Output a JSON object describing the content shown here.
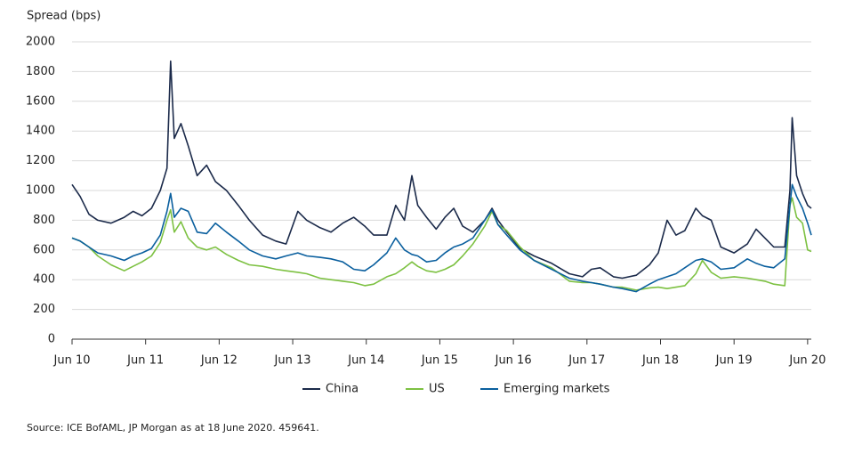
{
  "chart_data": {
    "type": "line",
    "y_label": "Spread (bps)",
    "source": "Source: ICE BofAML, JP Morgan as at 18 June 2020. 459641.",
    "x": [
      2010.5,
      2010.61,
      2010.73,
      2010.85,
      2011.03,
      2011.21,
      2011.33,
      2011.45,
      2011.58,
      2011.7,
      2011.79,
      2011.84,
      2011.89,
      2011.98,
      2012.08,
      2012.2,
      2012.33,
      2012.45,
      2012.6,
      2012.76,
      2012.91,
      2013.09,
      2013.27,
      2013.41,
      2013.57,
      2013.69,
      2013.87,
      2014.02,
      2014.18,
      2014.33,
      2014.48,
      2014.6,
      2014.78,
      2014.9,
      2015.02,
      2015.12,
      2015.2,
      2015.32,
      2015.45,
      2015.57,
      2015.69,
      2015.81,
      2015.95,
      2016.11,
      2016.21,
      2016.29,
      2016.41,
      2016.59,
      2016.78,
      2017.02,
      2017.26,
      2017.44,
      2017.56,
      2017.68,
      2017.86,
      2017.98,
      2018.17,
      2018.35,
      2018.47,
      2018.59,
      2018.71,
      2018.83,
      2018.98,
      2019.07,
      2019.19,
      2019.32,
      2019.5,
      2019.68,
      2019.8,
      2019.92,
      2020.04,
      2020.19,
      2020.26,
      2020.29,
      2020.35,
      2020.43,
      2020.5,
      2020.55
    ],
    "series": [
      {
        "name": "China",
        "color": "#1b2a4a",
        "values": [
          1040,
          960,
          840,
          800,
          780,
          820,
          860,
          830,
          880,
          1000,
          1150,
          1870,
          1350,
          1450,
          1300,
          1100,
          1170,
          1060,
          1000,
          900,
          800,
          700,
          660,
          640,
          860,
          800,
          750,
          720,
          780,
          820,
          760,
          700,
          700,
          900,
          800,
          1100,
          900,
          820,
          740,
          820,
          880,
          760,
          720,
          800,
          880,
          800,
          720,
          610,
          560,
          510,
          440,
          420,
          470,
          480,
          420,
          410,
          430,
          500,
          580,
          800,
          700,
          730,
          880,
          830,
          800,
          620,
          580,
          640,
          740,
          680,
          620,
          620,
          1000,
          1490,
          1100,
          980,
          900,
          880
        ]
      },
      {
        "name": "US",
        "color": "#7dc142",
        "values": [
          680,
          660,
          620,
          560,
          500,
          460,
          490,
          520,
          560,
          650,
          800,
          870,
          720,
          790,
          680,
          620,
          600,
          620,
          570,
          530,
          500,
          490,
          470,
          460,
          450,
          440,
          410,
          400,
          390,
          380,
          360,
          370,
          420,
          440,
          480,
          520,
          490,
          460,
          450,
          470,
          500,
          560,
          640,
          760,
          860,
          770,
          730,
          620,
          530,
          480,
          390,
          380,
          380,
          370,
          350,
          350,
          330,
          345,
          350,
          340,
          350,
          360,
          440,
          530,
          450,
          410,
          420,
          410,
          400,
          390,
          370,
          360,
          900,
          950,
          820,
          780,
          600,
          590
        ]
      },
      {
        "name": "Emerging markets",
        "color": "#0a5f9e",
        "values": [
          680,
          660,
          620,
          580,
          560,
          530,
          560,
          580,
          610,
          700,
          860,
          980,
          820,
          880,
          860,
          720,
          710,
          780,
          720,
          660,
          600,
          560,
          540,
          560,
          580,
          560,
          550,
          540,
          520,
          470,
          460,
          500,
          580,
          680,
          600,
          570,
          560,
          520,
          530,
          580,
          620,
          640,
          680,
          800,
          870,
          770,
          700,
          600,
          530,
          470,
          410,
          390,
          380,
          370,
          350,
          340,
          320,
          370,
          400,
          420,
          440,
          480,
          530,
          540,
          520,
          470,
          480,
          540,
          510,
          490,
          480,
          540,
          900,
          1040,
          960,
          880,
          780,
          700
        ]
      }
    ],
    "xlim": [
      2010.5,
      2020.55
    ],
    "xticks": [
      {
        "value": 2010.5,
        "label": "Jun 10"
      },
      {
        "value": 2011.5,
        "label": "Jun 11"
      },
      {
        "value": 2012.5,
        "label": "Jun 12"
      },
      {
        "value": 2013.5,
        "label": "Jun 13"
      },
      {
        "value": 2014.5,
        "label": "Jun 14"
      },
      {
        "value": 2015.5,
        "label": "Jun 15"
      },
      {
        "value": 2016.5,
        "label": "Jun 16"
      },
      {
        "value": 2017.5,
        "label": "Jun 17"
      },
      {
        "value": 2018.5,
        "label": "Jun 18"
      },
      {
        "value": 2019.5,
        "label": "Jun 19"
      },
      {
        "value": 2020.5,
        "label": "Jun 20"
      }
    ],
    "ylim": [
      0,
      2000
    ],
    "yticks": [
      0,
      200,
      400,
      600,
      800,
      1000,
      1200,
      1400,
      1600,
      1800,
      2000
    ],
    "grid": true
  }
}
